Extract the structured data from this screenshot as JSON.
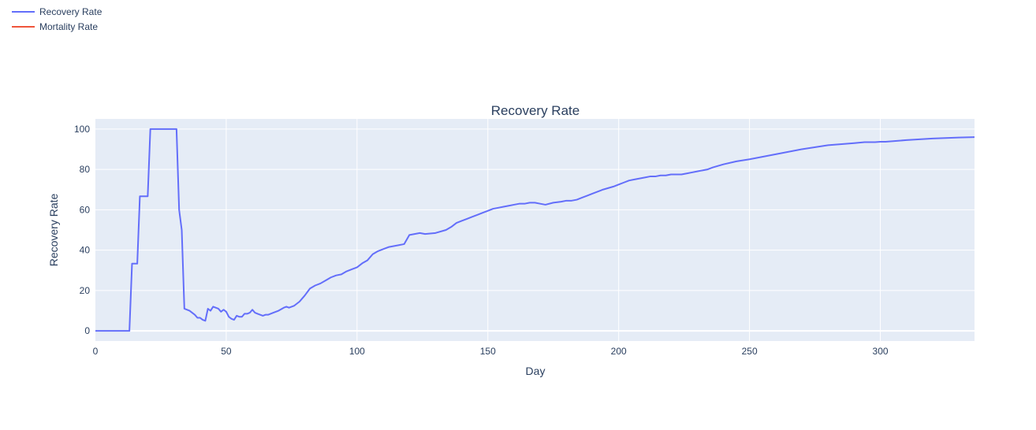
{
  "colors": {
    "recovery": "#636efa",
    "mortality": "#ef553b",
    "plot_bg": "#e5ecf6",
    "grid": "#ffffff",
    "text": "#2a3f5f"
  },
  "legend": {
    "items": [
      {
        "label": "Recovery Rate",
        "color": "#636efa"
      },
      {
        "label": "Mortality Rate",
        "color": "#ef553b"
      }
    ]
  },
  "chart_data": {
    "type": "line",
    "title": "Recovery Rate",
    "xlabel": "Day",
    "ylabel": "Recovery Rate",
    "xlim": [
      0,
      336
    ],
    "ylim": [
      -5,
      105
    ],
    "xticks": [
      0,
      50,
      100,
      150,
      200,
      250,
      300
    ],
    "yticks": [
      0,
      20,
      40,
      60,
      80,
      100
    ],
    "grid": true,
    "legend_position": "top-left",
    "series": [
      {
        "name": "Recovery Rate",
        "color": "#636efa",
        "x": [
          0,
          13,
          14,
          16,
          17,
          20,
          21,
          31,
          32,
          33,
          34,
          36,
          38,
          39,
          40,
          41,
          42,
          43,
          44,
          45,
          47,
          48,
          49,
          50,
          51,
          52,
          53,
          54,
          55,
          56,
          57,
          58,
          59,
          60,
          61,
          62,
          64,
          65,
          66,
          68,
          70,
          72,
          73,
          74,
          76,
          78,
          80,
          82,
          84,
          86,
          88,
          90,
          92,
          94,
          96,
          98,
          100,
          102,
          104,
          106,
          108,
          110,
          112,
          114,
          116,
          118,
          120,
          124,
          126,
          130,
          134,
          136,
          138,
          140,
          142,
          144,
          146,
          148,
          150,
          152,
          154,
          156,
          158,
          160,
          162,
          164,
          166,
          168,
          170,
          172,
          175,
          178,
          180,
          182,
          184,
          186,
          188,
          190,
          194,
          198,
          200,
          202,
          204,
          206,
          208,
          210,
          212,
          214,
          216,
          218,
          220,
          222,
          224,
          226,
          228,
          230,
          232,
          234,
          236,
          240,
          245,
          250,
          260,
          270,
          280,
          290,
          294,
          298,
          300,
          302,
          310,
          320,
          330,
          336
        ],
        "y": [
          0,
          0,
          33.3,
          33.3,
          66.7,
          66.7,
          100,
          100,
          60,
          50,
          11,
          10,
          8,
          6.5,
          6.5,
          5.5,
          5,
          11,
          10,
          12,
          11,
          9.5,
          10.5,
          9.5,
          7,
          6,
          5.5,
          7.5,
          7,
          7,
          8.5,
          8.5,
          9,
          10.5,
          9,
          8.5,
          7.5,
          8,
          8,
          9,
          10,
          11.5,
          12,
          11.5,
          12.5,
          14.5,
          17.5,
          21,
          22.5,
          23.5,
          25,
          26.5,
          27.5,
          28,
          29.5,
          30.5,
          31.5,
          33.5,
          35,
          38,
          39.5,
          40.5,
          41.5,
          42,
          42.5,
          43,
          47.5,
          48.5,
          48,
          48.5,
          50,
          51.5,
          53.5,
          54.5,
          55.5,
          56.5,
          57.5,
          58.5,
          59.5,
          60.5,
          61,
          61.5,
          62,
          62.5,
          63,
          63,
          63.5,
          63.5,
          63,
          62.5,
          63.5,
          64,
          64.5,
          64.5,
          65,
          66,
          67,
          68,
          70,
          71.5,
          72.5,
          73.5,
          74.5,
          75,
          75.5,
          76,
          76.5,
          76.5,
          77,
          77,
          77.5,
          77.5,
          77.5,
          78,
          78.5,
          79,
          79.5,
          80,
          81,
          82.5,
          84,
          85,
          87.5,
          90,
          92,
          93,
          93.5,
          93.5,
          93.7,
          93.7,
          94.5,
          95.3,
          95.8,
          96
        ]
      },
      {
        "name": "Mortality Rate",
        "color": "#ef553b",
        "x": [],
        "y": []
      }
    ]
  }
}
